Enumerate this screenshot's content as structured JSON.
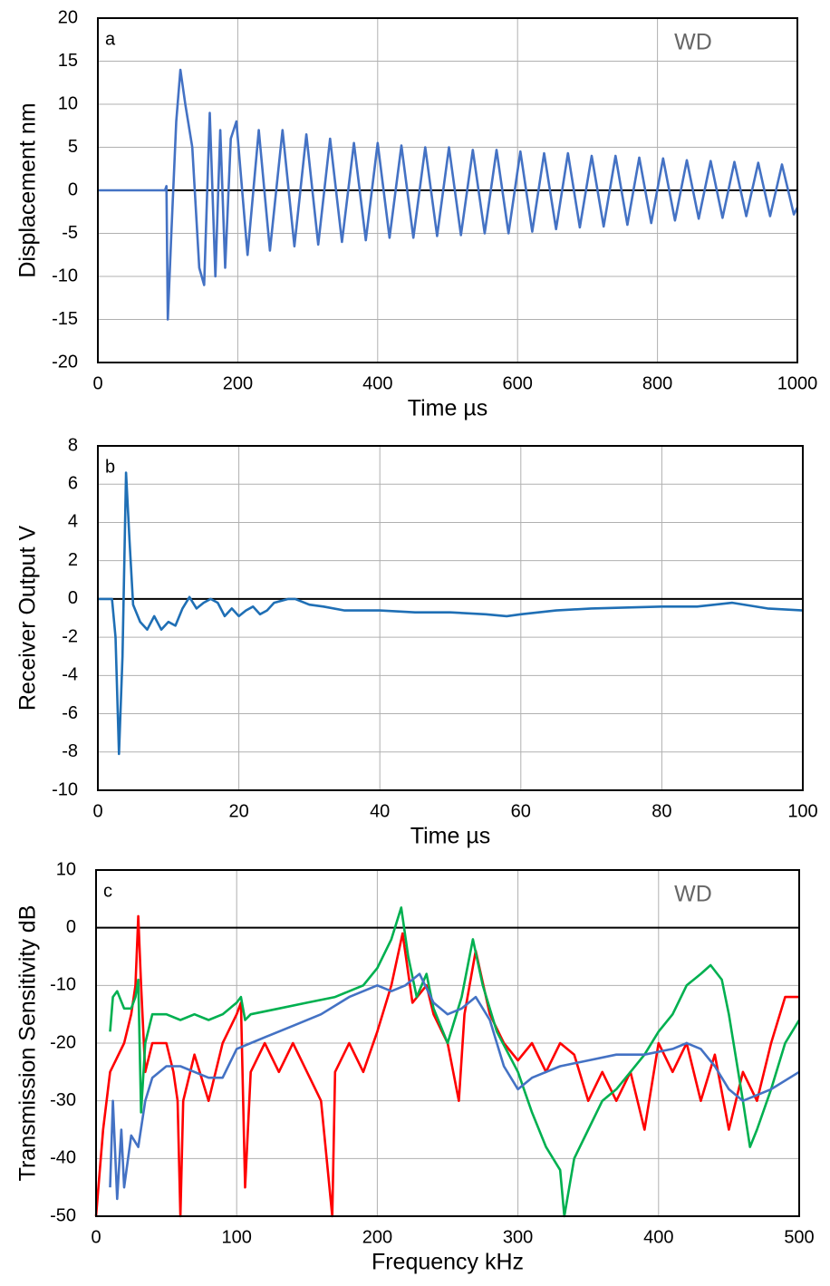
{
  "chart_data": [
    {
      "type": "line",
      "annotations": [
        "a",
        "WD"
      ],
      "xlabel": "Time  µs",
      "ylabel": "Displacement  nm",
      "xlim": [
        0,
        1000
      ],
      "xticks": [
        0,
        200,
        400,
        600,
        800,
        1000
      ],
      "ylim": [
        -20,
        20
      ],
      "yticks": [
        -20,
        -15,
        -10,
        -5,
        0,
        5,
        10,
        15,
        20
      ],
      "grid": true,
      "series": [
        {
          "color": "#4472c4",
          "x": [
            0,
            96,
            98,
            100,
            105,
            112,
            118,
            125,
            135,
            145,
            152,
            160,
            168,
            175,
            182,
            190,
            198,
            214,
            230,
            246,
            264,
            281,
            298,
            315,
            332,
            349,
            366,
            383,
            400,
            417,
            434,
            451,
            468,
            485,
            502,
            519,
            536,
            553,
            570,
            587,
            604,
            621,
            638,
            655,
            672,
            689,
            706,
            723,
            740,
            757,
            774,
            791,
            808,
            825,
            842,
            859,
            876,
            893,
            910,
            927,
            944,
            961,
            978,
            995,
            1000
          ],
          "values": [
            0,
            0,
            0.5,
            -15,
            -5,
            8,
            14,
            10,
            5,
            -9,
            -11,
            9,
            -10,
            7,
            -9,
            6,
            8,
            -7.5,
            7,
            -7,
            7,
            -6.5,
            6.5,
            -6.3,
            6,
            -6,
            5.5,
            -5.8,
            5.5,
            -5.5,
            5.2,
            -5.5,
            5,
            -5.3,
            5,
            -5.2,
            4.7,
            -5,
            4.7,
            -5,
            4.5,
            -4.8,
            4.3,
            -4.5,
            4.3,
            -4.3,
            4,
            -4.2,
            4,
            -4,
            3.8,
            -3.8,
            3.7,
            -3.5,
            3.5,
            -3.3,
            3.4,
            -3.2,
            3.3,
            -3,
            3.2,
            -3,
            3,
            -2.8,
            -2
          ]
        }
      ]
    },
    {
      "type": "line",
      "annotations": [
        "b"
      ],
      "xlabel": "Time  µs",
      "ylabel": "Receiver Output  V",
      "xlim": [
        0,
        100
      ],
      "xticks": [
        0,
        20,
        40,
        60,
        80,
        100
      ],
      "ylim": [
        -10,
        8
      ],
      "yticks": [
        -10,
        -8,
        -6,
        -4,
        -2,
        0,
        2,
        4,
        6,
        8
      ],
      "grid": true,
      "series": [
        {
          "color": "#1f6fb5",
          "x": [
            0,
            2,
            2.5,
            3,
            3.5,
            4,
            4.5,
            5,
            6,
            7,
            8,
            9,
            10,
            11,
            12,
            13,
            14,
            15,
            16,
            17,
            18,
            19,
            20,
            21,
            22,
            23,
            24,
            25,
            27,
            28,
            30,
            32,
            35,
            40,
            45,
            50,
            55,
            58,
            60,
            65,
            70,
            80,
            85,
            90,
            95,
            100
          ],
          "values": [
            0,
            0,
            -2,
            -8.1,
            -3,
            6.6,
            3,
            -0.3,
            -1.2,
            -1.6,
            -0.9,
            -1.6,
            -1.2,
            -1.4,
            -0.5,
            0.1,
            -0.5,
            -0.2,
            0,
            -0.2,
            -0.9,
            -0.5,
            -0.9,
            -0.6,
            -0.4,
            -0.8,
            -0.6,
            -0.2,
            0,
            0,
            -0.3,
            -0.4,
            -0.6,
            -0.6,
            -0.7,
            -0.7,
            -0.8,
            -0.9,
            -0.8,
            -0.6,
            -0.5,
            -0.4,
            -0.4,
            -0.2,
            -0.5,
            -0.6
          ]
        }
      ]
    },
    {
      "type": "line",
      "annotations": [
        "c",
        "WD"
      ],
      "xlabel": "Frequency  kHz",
      "ylabel": "Transmission Sensitivity  dB",
      "xlim": [
        0,
        500
      ],
      "xticks": [
        0,
        100,
        200,
        300,
        400,
        500
      ],
      "ylim": [
        -50,
        10
      ],
      "yticks": [
        -50,
        -40,
        -30,
        -20,
        -10,
        0,
        10
      ],
      "grid": true,
      "series": [
        {
          "color": "#ff0000",
          "x": [
            0,
            5,
            10,
            20,
            25,
            28,
            30,
            32,
            35,
            40,
            50,
            55,
            58,
            60,
            62,
            70,
            80,
            90,
            100,
            103,
            106,
            110,
            120,
            130,
            140,
            150,
            160,
            168,
            170,
            180,
            190,
            200,
            210,
            218,
            225,
            235,
            240,
            250,
            258,
            262,
            270,
            280,
            290,
            300,
            310,
            320,
            330,
            340,
            350,
            360,
            370,
            380,
            390,
            400,
            410,
            420,
            430,
            440,
            450,
            460,
            470,
            480,
            490,
            500
          ],
          "values": [
            -50,
            -35,
            -25,
            -20,
            -15,
            -10,
            2,
            -10,
            -25,
            -20,
            -20,
            -25,
            -30,
            -50,
            -30,
            -22,
            -30,
            -20,
            -15,
            -13,
            -45,
            -25,
            -20,
            -25,
            -20,
            -25,
            -30,
            -50,
            -25,
            -20,
            -25,
            -18,
            -10,
            -1,
            -13,
            -10,
            -15,
            -20,
            -30,
            -15,
            -4,
            -15,
            -20,
            -23,
            -20,
            -25,
            -20,
            -22,
            -30,
            -25,
            -30,
            -25,
            -35,
            -20,
            -25,
            -20,
            -30,
            -22,
            -35,
            -25,
            -30,
            -20,
            -12,
            -12
          ]
        },
        {
          "color": "#00b050",
          "x": [
            10,
            12,
            15,
            20,
            25,
            28,
            30,
            32,
            35,
            40,
            50,
            60,
            70,
            80,
            90,
            100,
            103,
            106,
            110,
            130,
            150,
            170,
            190,
            200,
            210,
            217,
            222,
            228,
            235,
            240,
            250,
            260,
            268,
            275,
            285,
            300,
            310,
            320,
            330,
            333,
            340,
            350,
            360,
            370,
            380,
            390,
            400,
            410,
            420,
            430,
            437,
            445,
            450,
            460,
            465,
            470,
            480,
            490,
            500
          ],
          "values": [
            -18,
            -12,
            -11,
            -14,
            -14,
            -12,
            -9,
            -32,
            -20,
            -15,
            -15,
            -16,
            -15,
            -16,
            -15,
            -13,
            -12,
            -16,
            -15,
            -14,
            -13,
            -12,
            -10,
            -7,
            -2,
            3.5,
            -5,
            -12,
            -8,
            -14,
            -20,
            -12,
            -2,
            -10,
            -18,
            -25,
            -32,
            -38,
            -42,
            -50,
            -40,
            -35,
            -30,
            -28,
            -25,
            -22,
            -18,
            -15,
            -10,
            -8,
            -6.5,
            -9,
            -15,
            -30,
            -38,
            -35,
            -28,
            -20,
            -16
          ]
        },
        {
          "color": "#4472c4",
          "x": [
            10,
            12,
            15,
            18,
            20,
            25,
            30,
            35,
            40,
            50,
            60,
            70,
            80,
            90,
            100,
            110,
            120,
            140,
            160,
            180,
            200,
            210,
            220,
            230,
            240,
            250,
            260,
            270,
            280,
            290,
            300,
            310,
            330,
            350,
            370,
            390,
            410,
            420,
            430,
            440,
            450,
            460,
            480,
            500
          ],
          "values": [
            -45,
            -30,
            -47,
            -35,
            -45,
            -36,
            -38,
            -30,
            -26,
            -24,
            -24,
            -25,
            -26,
            -26,
            -21,
            -20,
            -19,
            -17,
            -15,
            -12,
            -10,
            -11,
            -10,
            -8,
            -13,
            -15,
            -14,
            -12,
            -16,
            -24,
            -28,
            -26,
            -24,
            -23,
            -22,
            -22,
            -21,
            -20,
            -21,
            -24,
            -28,
            -30,
            -28,
            -25
          ]
        }
      ]
    }
  ]
}
